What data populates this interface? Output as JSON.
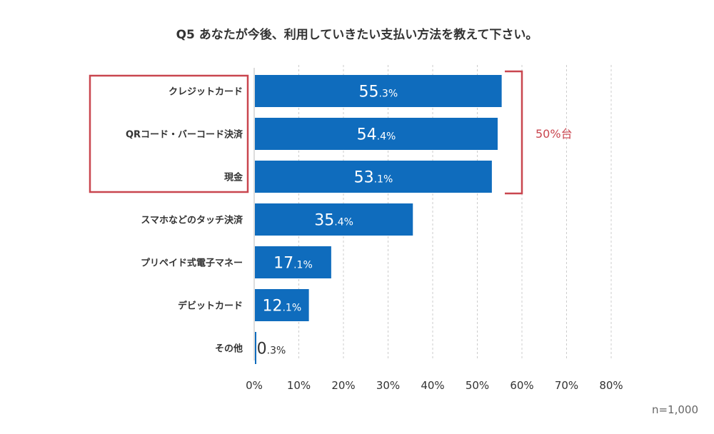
{
  "chart_data": {
    "type": "bar",
    "orientation": "horizontal",
    "title": "Q5 あなたが今後、利用していきたい支払い方法を教えて下さい。",
    "categories": [
      "クレジットカード",
      "QRコード・バーコード決済",
      "現金",
      "スマホなどのタッチ決済",
      "プリペイド式電子マネー",
      "デビットカード",
      "その他"
    ],
    "values": [
      55.3,
      54.4,
      53.1,
      35.4,
      17.1,
      12.1,
      0.3
    ],
    "value_labels": [
      {
        "int": "55",
        "dec": ".3%"
      },
      {
        "int": "54",
        "dec": ".4%"
      },
      {
        "int": "53",
        "dec": ".1%"
      },
      {
        "int": "35",
        "dec": ".4%"
      },
      {
        "int": "17",
        "dec": ".1%"
      },
      {
        "int": "12",
        "dec": ".1%"
      },
      {
        "int": "0",
        "dec": ".3%"
      }
    ],
    "xlim": [
      0,
      80
    ],
    "xticks": [
      0,
      10,
      20,
      30,
      40,
      50,
      60,
      70,
      80
    ],
    "xtick_labels": [
      "0%",
      "10%",
      "20%",
      "30%",
      "40%",
      "50%",
      "60%",
      "70%",
      "80%"
    ],
    "grid": "vertical dashed",
    "annotation": {
      "text": "50%台",
      "group": [
        "クレジットカード",
        "QRコード・バーコード決済",
        "現金"
      ]
    },
    "note": "n=1,000",
    "colors": {
      "bar": "#0F6CBD",
      "highlight": "#C9464F",
      "grid": "#CCCCCC",
      "text": "#333333"
    }
  }
}
